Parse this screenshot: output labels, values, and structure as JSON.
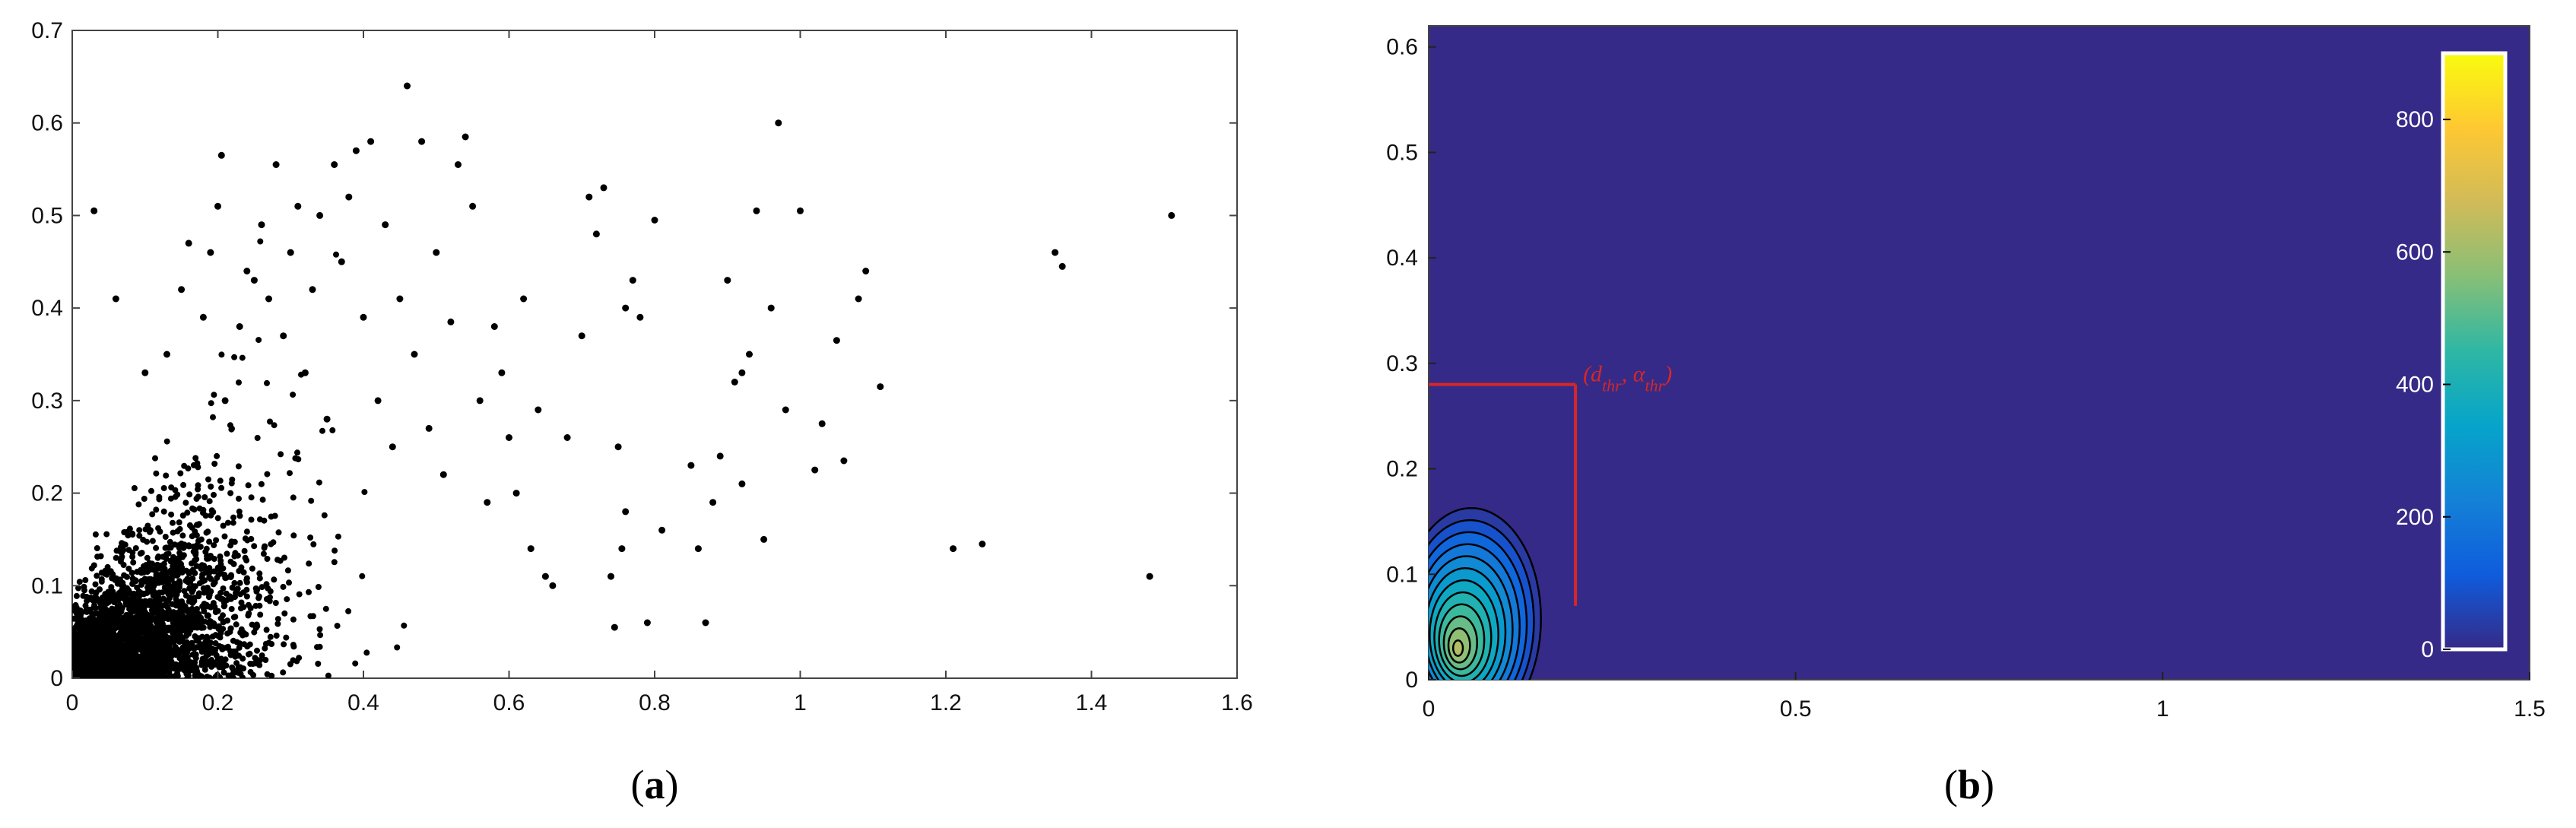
{
  "figure": {
    "panel_a_caption": {
      "open": "(",
      "letter": "a",
      "close": ")"
    },
    "panel_b_caption": {
      "open": "(",
      "letter": "b",
      "close": ")"
    }
  },
  "chart_data": [
    {
      "type": "scatter",
      "panel": "a",
      "title": "",
      "xlabel": "",
      "ylabel": "",
      "xlim": [
        0,
        1.6
      ],
      "ylim": [
        0,
        0.7
      ],
      "xticks": [
        "0",
        "0.2",
        "0.4",
        "0.6",
        "0.8",
        "1",
        "1.2",
        "1.4",
        "1.6"
      ],
      "yticks": [
        "0",
        "0.1",
        "0.2",
        "0.3",
        "0.4",
        "0.5",
        "0.6",
        "0.7"
      ],
      "grid": false,
      "marker_color": "#000000",
      "points": [
        [
          0.03,
          0.505
        ],
        [
          0.06,
          0.41
        ],
        [
          0.1,
          0.33
        ],
        [
          0.13,
          0.35
        ],
        [
          0.15,
          0.42
        ],
        [
          0.16,
          0.47
        ],
        [
          0.18,
          0.39
        ],
        [
          0.19,
          0.46
        ],
        [
          0.2,
          0.51
        ],
        [
          0.205,
          0.565
        ],
        [
          0.21,
          0.3
        ],
        [
          0.23,
          0.38
        ],
        [
          0.24,
          0.44
        ],
        [
          0.25,
          0.43
        ],
        [
          0.26,
          0.49
        ],
        [
          0.27,
          0.41
        ],
        [
          0.28,
          0.555
        ],
        [
          0.29,
          0.37
        ],
        [
          0.3,
          0.46
        ],
        [
          0.31,
          0.51
        ],
        [
          0.32,
          0.33
        ],
        [
          0.33,
          0.42
        ],
        [
          0.34,
          0.5
        ],
        [
          0.35,
          0.28
        ],
        [
          0.36,
          0.555
        ],
        [
          0.37,
          0.45
        ],
        [
          0.38,
          0.52
        ],
        [
          0.39,
          0.57
        ],
        [
          0.4,
          0.39
        ],
        [
          0.41,
          0.58
        ],
        [
          0.42,
          0.3
        ],
        [
          0.43,
          0.49
        ],
        [
          0.44,
          0.25
        ],
        [
          0.45,
          0.41
        ],
        [
          0.46,
          0.64
        ],
        [
          0.47,
          0.35
        ],
        [
          0.48,
          0.58
        ],
        [
          0.49,
          0.27
        ],
        [
          0.5,
          0.46
        ],
        [
          0.51,
          0.22
        ],
        [
          0.52,
          0.385
        ],
        [
          0.53,
          0.555
        ],
        [
          0.54,
          0.585
        ],
        [
          0.55,
          0.51
        ],
        [
          0.56,
          0.3
        ],
        [
          0.57,
          0.19
        ],
        [
          0.58,
          0.38
        ],
        [
          0.59,
          0.33
        ],
        [
          0.6,
          0.26
        ],
        [
          0.61,
          0.2
        ],
        [
          0.62,
          0.41
        ],
        [
          0.63,
          0.14
        ],
        [
          0.64,
          0.29
        ],
        [
          0.65,
          0.11
        ],
        [
          0.66,
          0.1
        ],
        [
          0.68,
          0.26
        ],
        [
          0.7,
          0.37
        ],
        [
          0.71,
          0.52
        ],
        [
          0.72,
          0.48
        ],
        [
          0.73,
          0.53
        ],
        [
          0.74,
          0.11
        ],
        [
          0.75,
          0.25
        ],
        [
          0.76,
          0.4
        ],
        [
          0.77,
          0.43
        ],
        [
          0.78,
          0.39
        ],
        [
          0.79,
          0.06
        ],
        [
          0.8,
          0.495
        ],
        [
          0.81,
          0.16
        ],
        [
          0.85,
          0.23
        ],
        [
          0.86,
          0.14
        ],
        [
          0.87,
          0.06
        ],
        [
          0.88,
          0.19
        ],
        [
          0.89,
          0.24
        ],
        [
          0.9,
          0.43
        ],
        [
          0.91,
          0.32
        ],
        [
          0.92,
          0.21
        ],
        [
          0.93,
          0.35
        ],
        [
          0.94,
          0.505
        ],
        [
          0.95,
          0.15
        ],
        [
          0.96,
          0.4
        ],
        [
          0.97,
          0.6
        ],
        [
          0.98,
          0.29
        ],
        [
          1.0,
          0.505
        ],
        [
          1.02,
          0.225
        ],
        [
          1.03,
          0.275
        ],
        [
          1.05,
          0.365
        ],
        [
          1.06,
          0.235
        ],
        [
          1.08,
          0.41
        ],
        [
          1.09,
          0.44
        ],
        [
          1.11,
          0.315
        ],
        [
          1.21,
          0.14
        ],
        [
          1.25,
          0.145
        ],
        [
          1.35,
          0.46
        ],
        [
          1.36,
          0.445
        ],
        [
          1.48,
          0.11
        ],
        [
          1.51,
          0.5
        ],
        [
          0.745,
          0.055
        ],
        [
          0.76,
          0.18
        ],
        [
          0.755,
          0.14
        ],
        [
          0.92,
          0.33
        ]
      ],
      "cluster": {
        "x_center": 0.1,
        "x_spread": 0.09,
        "y_spread": 0.08,
        "count": 2800
      }
    },
    {
      "type": "heatmap",
      "subtype": "filled-contour",
      "panel": "b",
      "title": "",
      "xlabel": "",
      "ylabel": "",
      "xlim": [
        0,
        1.5
      ],
      "ylim": [
        0,
        0.62
      ],
      "xticks": [
        "0",
        "0.5",
        "1",
        "1.5"
      ],
      "yticks": [
        "0",
        "0.1",
        "0.2",
        "0.3",
        "0.4",
        "0.5",
        "0.6"
      ],
      "background_color": "#352a87",
      "peak": {
        "x": 0.04,
        "y": 0.03
      },
      "contour_levels": 12,
      "outer_contour": {
        "x_range": [
          0,
          0.2
        ],
        "y_range": [
          0,
          0.21
        ]
      },
      "colorbar": {
        "range": [
          0,
          900
        ],
        "ticks": [
          "0",
          "200",
          "400",
          "600",
          "800"
        ],
        "colors": [
          "#352a87",
          "#0f5cdd",
          "#1481d6",
          "#06a4ca",
          "#2eb7a4",
          "#87bf77",
          "#d1bb59",
          "#fec832",
          "#f9fb0e"
        ]
      },
      "annotation": {
        "label_main": "(d",
        "label_sub1": "thr",
        "label_mid": ",  α",
        "label_sub2": "thr",
        "label_close": ")",
        "d_thr": 0.2,
        "alpha_thr": 0.28,
        "line_bottom": 0.07,
        "color": "#d62728"
      }
    }
  ]
}
